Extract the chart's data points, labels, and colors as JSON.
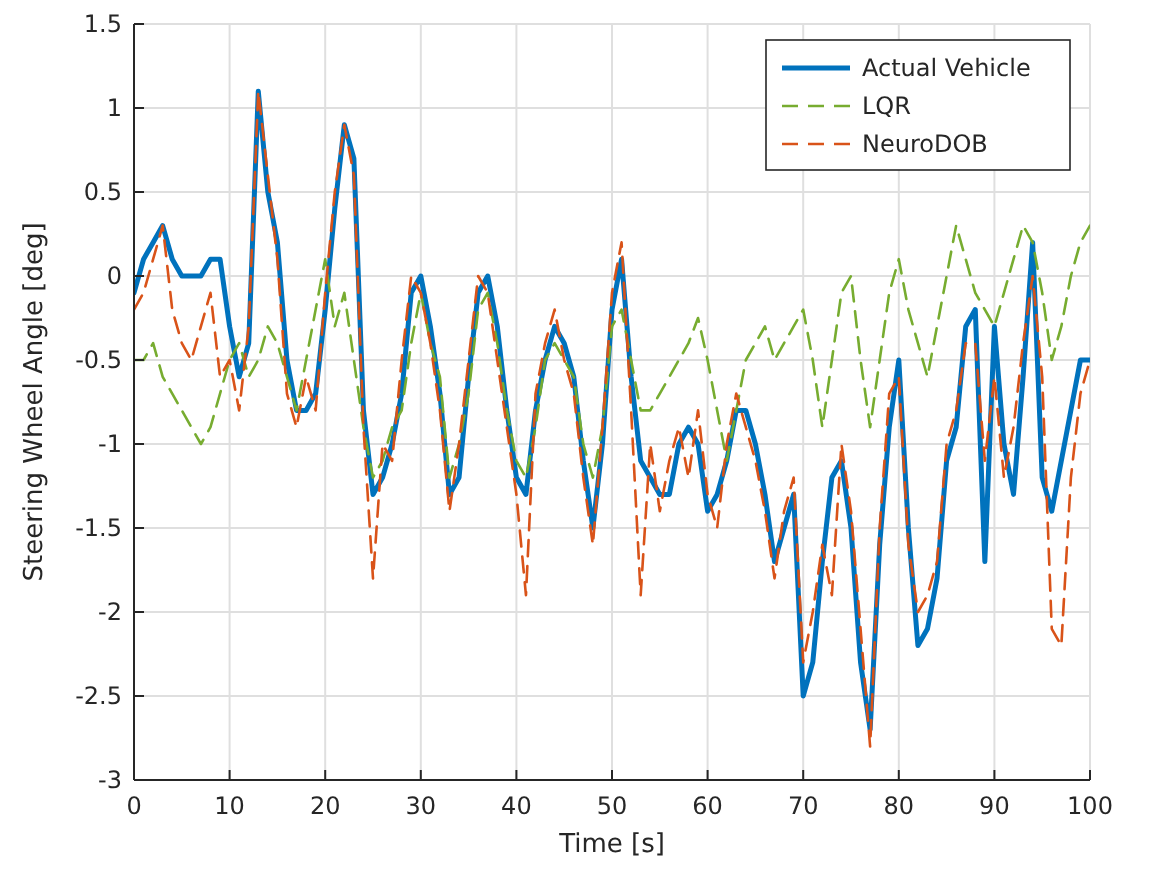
{
  "chart_data": {
    "type": "line",
    "xlabel": "Time [s]",
    "ylabel": "Steering Wheel Angle [deg]",
    "x": [
      0,
      1,
      2,
      3,
      4,
      5,
      6,
      7,
      8,
      9,
      10,
      11,
      12,
      13,
      14,
      15,
      16,
      17,
      18,
      19,
      20,
      21,
      22,
      23,
      24,
      25,
      26,
      27,
      28,
      29,
      30,
      31,
      32,
      33,
      34,
      35,
      36,
      37,
      38,
      39,
      40,
      41,
      42,
      43,
      44,
      45,
      46,
      47,
      48,
      49,
      50,
      51,
      52,
      53,
      54,
      55,
      56,
      57,
      58,
      59,
      60,
      61,
      62,
      63,
      64,
      65,
      66,
      67,
      68,
      69,
      70,
      71,
      72,
      73,
      74,
      75,
      76,
      77,
      78,
      79,
      80,
      81,
      82,
      83,
      84,
      85,
      86,
      87,
      88,
      89,
      90,
      91,
      92,
      93,
      94,
      95,
      96,
      97,
      98,
      99,
      100
    ],
    "series": [
      {
        "name": "Actual Vehicle",
        "color": "#0072bd",
        "line_style": "solid",
        "values": [
          -0.1,
          0.1,
          0.2,
          0.3,
          0.1,
          0,
          0,
          0,
          0.1,
          0.1,
          -0.3,
          -0.6,
          -0.4,
          1.1,
          0.5,
          0.2,
          -0.5,
          -0.8,
          -0.8,
          -0.7,
          -0.2,
          0.4,
          0.9,
          0.7,
          -0.8,
          -1.3,
          -1.2,
          -1.0,
          -0.7,
          -0.1,
          0,
          -0.3,
          -0.7,
          -1.3,
          -1.2,
          -0.6,
          -0.1,
          0,
          -0.3,
          -0.8,
          -1.2,
          -1.3,
          -0.8,
          -0.5,
          -0.3,
          -0.4,
          -0.6,
          -1.1,
          -1.5,
          -1.0,
          -0.2,
          0.1,
          -0.6,
          -1.1,
          -1.2,
          -1.3,
          -1.3,
          -1.0,
          -0.9,
          -1.0,
          -1.4,
          -1.3,
          -1.1,
          -0.8,
          -0.8,
          -1.0,
          -1.3,
          -1.7,
          -1.5,
          -1.3,
          -2.5,
          -2.3,
          -1.7,
          -1.2,
          -1.1,
          -1.5,
          -2.3,
          -2.7,
          -1.6,
          -0.9,
          -0.5,
          -1.5,
          -2.2,
          -2.1,
          -1.8,
          -1.1,
          -0.9,
          -0.3,
          -0.2,
          -1.7,
          -0.3,
          -1.0,
          -1.3,
          -0.6,
          0.2,
          -1.2,
          -1.4,
          -1.1,
          -0.8,
          -0.5,
          -0.5
        ]
      },
      {
        "name": "LQR",
        "color": "#77ac30",
        "line_style": "dashed",
        "values": [
          -0.5,
          -0.5,
          -0.4,
          -0.6,
          -0.7,
          -0.8,
          -0.9,
          -1.0,
          -0.9,
          -0.7,
          -0.5,
          -0.4,
          -0.6,
          -0.5,
          -0.3,
          -0.4,
          -0.6,
          -0.8,
          -0.5,
          -0.2,
          0.1,
          -0.3,
          -0.1,
          -0.5,
          -0.9,
          -1.2,
          -1.1,
          -0.9,
          -0.8,
          -0.4,
          -0.1,
          -0.4,
          -0.6,
          -1.2,
          -1.0,
          -0.7,
          -0.2,
          -0.1,
          -0.4,
          -0.8,
          -1.1,
          -1.2,
          -0.9,
          -0.5,
          -0.4,
          -0.5,
          -0.6,
          -1.0,
          -1.2,
          -0.9,
          -0.3,
          -0.2,
          -0.5,
          -0.8,
          -0.8,
          -0.7,
          -0.6,
          -0.5,
          -0.4,
          -0.25,
          -0.5,
          -0.8,
          -1.1,
          -0.8,
          -0.5,
          -0.4,
          -0.3,
          -0.5,
          -0.4,
          -0.3,
          -0.2,
          -0.5,
          -0.9,
          -0.5,
          -0.1,
          0,
          -0.5,
          -0.9,
          -0.5,
          -0.1,
          0.1,
          -0.2,
          -0.4,
          -0.6,
          -0.3,
          0,
          0.3,
          0.1,
          -0.1,
          -0.2,
          -0.3,
          -0.1,
          0.1,
          0.3,
          0.2,
          -0.1,
          -0.5,
          -0.3,
          0,
          0.2,
          0.3
        ]
      },
      {
        "name": "NeuroDOB",
        "color": "#d95319",
        "line_style": "dashed",
        "values": [
          -0.2,
          -0.1,
          0.1,
          0.3,
          -0.2,
          -0.4,
          -0.5,
          -0.3,
          -0.1,
          -0.6,
          -0.5,
          -0.8,
          -0.3,
          1.1,
          0.6,
          0.1,
          -0.7,
          -0.9,
          -0.6,
          -0.8,
          -0.1,
          0.5,
          0.9,
          0.6,
          -0.9,
          -1.8,
          -1.0,
          -1.1,
          -0.5,
          0,
          -0.1,
          -0.4,
          -0.8,
          -1.4,
          -1.0,
          -0.5,
          0,
          -0.1,
          -0.5,
          -0.9,
          -1.3,
          -1.9,
          -0.7,
          -0.4,
          -0.2,
          -0.5,
          -0.7,
          -1.2,
          -1.6,
          -0.9,
          -0.1,
          0.2,
          -0.8,
          -1.9,
          -1.0,
          -1.4,
          -1.1,
          -0.9,
          -1.2,
          -0.8,
          -1.3,
          -1.5,
          -1.0,
          -0.7,
          -0.9,
          -1.1,
          -1.4,
          -1.8,
          -1.4,
          -1.2,
          -2.3,
          -2.0,
          -1.6,
          -1.9,
          -1.0,
          -1.4,
          -2.1,
          -2.8,
          -1.5,
          -0.7,
          -0.6,
          -1.6,
          -2.0,
          -1.9,
          -1.7,
          -1.0,
          -0.8,
          -0.4,
          -0.4,
          -1.1,
          -0.6,
          -1.2,
          -0.9,
          -0.4,
          0,
          -0.6,
          -2.1,
          -2.2,
          -1.2,
          -0.7,
          -0.5
        ]
      }
    ],
    "xlim": [
      0,
      100
    ],
    "xticks": [
      0,
      10,
      20,
      30,
      40,
      50,
      60,
      70,
      80,
      90,
      100
    ],
    "ylim": [
      -3,
      1.5
    ],
    "yticks": [
      -3,
      -2.5,
      -2,
      -1.5,
      -1,
      -0.5,
      0,
      0.5,
      1,
      1.5
    ],
    "grid": true,
    "legend": "top right"
  }
}
